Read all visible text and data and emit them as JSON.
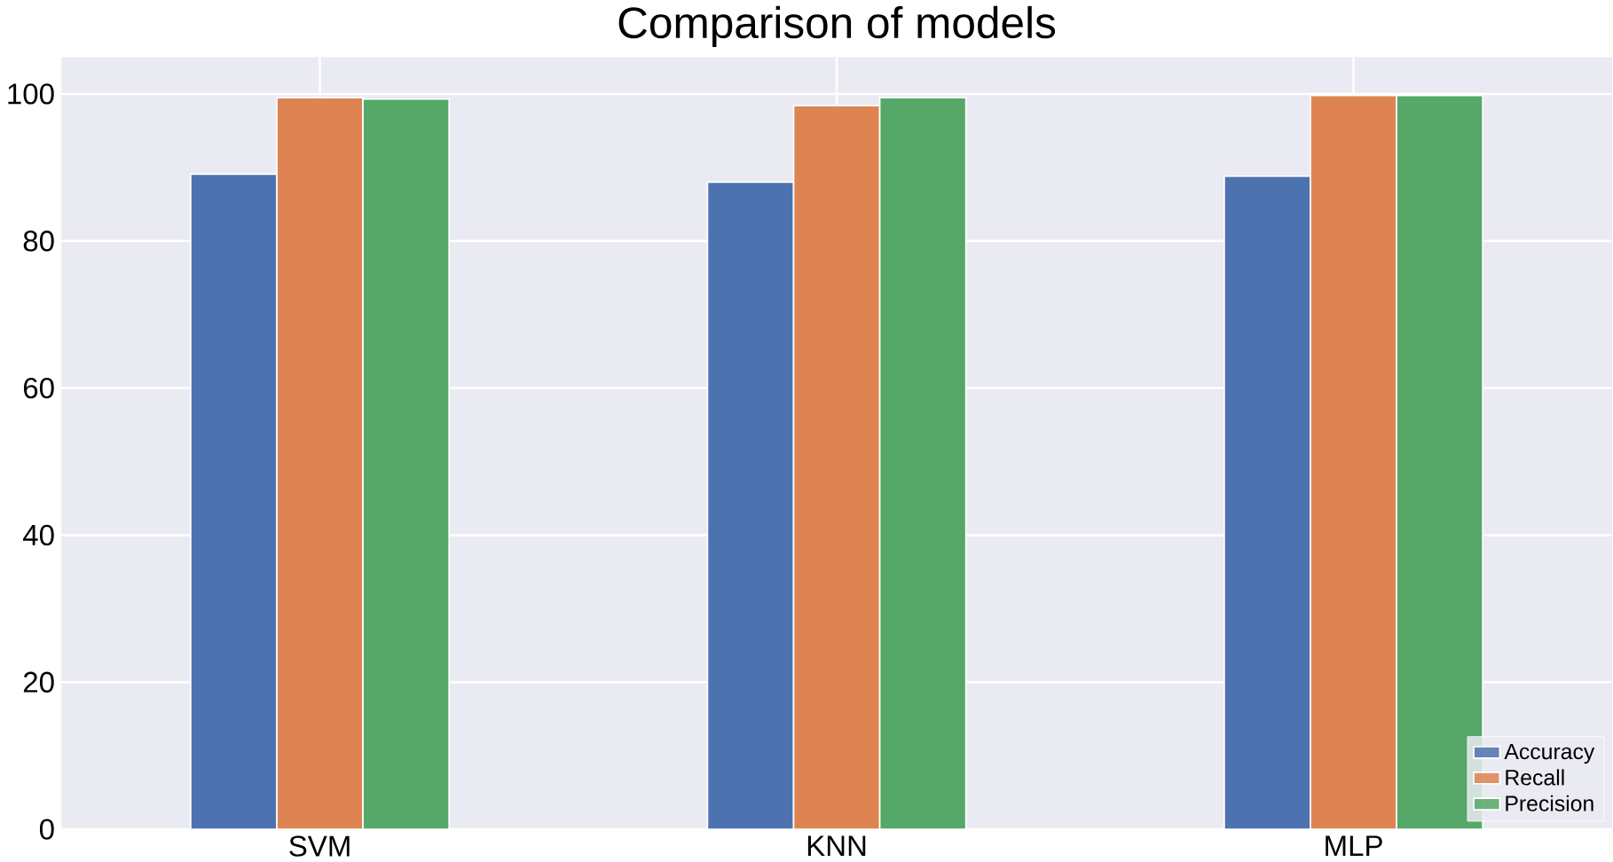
{
  "chart_data": {
    "type": "bar",
    "title": "Comparison of models",
    "categories": [
      "SVM",
      "KNN",
      "MLP"
    ],
    "series": [
      {
        "name": "Accuracy",
        "color": "#4c72b0",
        "values": [
          89.1,
          88.0,
          88.8
        ]
      },
      {
        "name": "Recall",
        "color": "#dd8452",
        "values": [
          99.5,
          98.4,
          99.8
        ]
      },
      {
        "name": "Precision",
        "color": "#55a868",
        "values": [
          99.3,
          99.5,
          99.8
        ]
      }
    ],
    "ylim": [
      0,
      105
    ],
    "yticks": [
      0,
      20,
      40,
      60,
      80,
      100
    ],
    "grid": true,
    "legend": "bottom right"
  }
}
